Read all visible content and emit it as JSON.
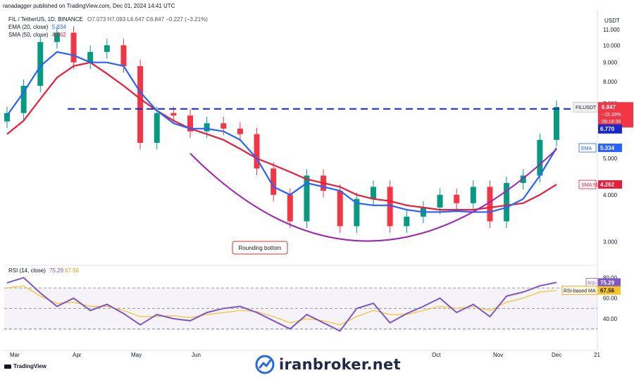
{
  "header": {
    "publisher": "ranadagger published on TradingView.com, Dec 01, 2024 14:41 UTC",
    "symbol": "FIL / TetherUS, 1D, BINANCE",
    "ohlc": "O7.073 H7.093 L6.647 C6.847 −0.227 (−3.21%)",
    "ema_label": "EMA (20, close)",
    "ema_value": "5.334",
    "sma_label": "SMA (50, close)",
    "sma_value": "4.262"
  },
  "currency": "USDT",
  "colors": {
    "up": "#089981",
    "down": "#f23645",
    "ema": "#2962ff",
    "sma": "#e91e3a",
    "curve": "#9c27b0",
    "resistance": "#1a27c9",
    "rsi": "#7e57c2",
    "rsi_ma": "#f7c325"
  },
  "chart_data": [
    {
      "type": "line",
      "price_scale": "log",
      "y_ticks": [
        "11.000",
        "10.000",
        "9.000",
        "8.000",
        "7.000",
        "5.000",
        "4.000",
        "3.000"
      ],
      "x_ticks": [
        "Mar",
        "Apr",
        "May",
        "Jun",
        "Oct",
        "Nov",
        "Dec",
        "21"
      ],
      "price_tags": [
        {
          "label": "FILUSDT",
          "value": "6.847",
          "change": "−15.39%",
          "countdown": "09:18:39",
          "color": "#f23645"
        },
        {
          "label": "",
          "value": "6.770",
          "color": "#1a27c9"
        },
        {
          "label": "EMA",
          "value": "5.334",
          "color": "#2962ff"
        },
        {
          "label": "SMA:MA",
          "value": "4.262",
          "color": "#e91e3a"
        }
      ],
      "resistance_level": 6.77,
      "annotation": "Rounding bottom",
      "series": [
        {
          "name": "EMA",
          "values": [
            6.5,
            7.5,
            8.8,
            9.6,
            9.4,
            9.0,
            9.0,
            8.8,
            7.5,
            6.7,
            6.2,
            6.0,
            6.0,
            5.9,
            5.6,
            5.0,
            4.2,
            4.0,
            4.3,
            4.2,
            4.1,
            3.8,
            3.75,
            3.75,
            3.65,
            3.6,
            3.6,
            3.62,
            3.6,
            3.6,
            3.7,
            3.9,
            4.5,
            5.33
          ]
        },
        {
          "name": "SMA",
          "values": [
            5.8,
            6.3,
            7.2,
            8.2,
            8.8,
            9.0,
            8.4,
            7.8,
            7.2,
            6.7,
            6.3,
            6.0,
            5.8,
            5.6,
            5.3,
            5.0,
            4.8,
            4.6,
            4.4,
            4.3,
            4.2,
            4.0,
            3.9,
            3.85,
            3.75,
            3.7,
            3.65,
            3.65,
            3.65,
            3.7,
            3.75,
            3.8,
            4.0,
            4.26
          ]
        }
      ],
      "closes": [
        6.6,
        7.8,
        10.2,
        10.8,
        9.0,
        9.6,
        10.0,
        8.8,
        5.5,
        6.6,
        6.5,
        5.9,
        6.2,
        6.0,
        5.8,
        4.7,
        4.0,
        3.4,
        4.5,
        4.1,
        3.3,
        3.9,
        4.2,
        3.3,
        3.5,
        3.7,
        4.0,
        3.8,
        4.2,
        3.4,
        4.3,
        4.5,
        5.6,
        6.85
      ]
    },
    {
      "type": "line",
      "title": "RSI (14, close)",
      "legend_values": [
        "75.29",
        "67.56"
      ],
      "y_ticks": [
        "80.00",
        "60.00",
        "40.00"
      ],
      "levels": [
        70,
        50,
        30
      ],
      "ylim": [
        20,
        90
      ],
      "series": [
        {
          "name": "RSI",
          "values": [
            75,
            80,
            65,
            52,
            60,
            48,
            54,
            45,
            34,
            44,
            40,
            38,
            46,
            50,
            52,
            46,
            38,
            30,
            44,
            36,
            28,
            50,
            55,
            36,
            45,
            52,
            60,
            46,
            54,
            42,
            62,
            66,
            72,
            75.29
          ]
        },
        {
          "name": "RSI-based MA",
          "values": [
            70,
            72,
            62,
            55,
            56,
            52,
            52,
            48,
            42,
            42,
            43,
            41,
            44,
            46,
            48,
            47,
            42,
            36,
            40,
            38,
            34,
            42,
            48,
            44,
            44,
            48,
            52,
            50,
            52,
            48,
            56,
            60,
            66,
            67.56
          ]
        }
      ],
      "tags": [
        {
          "label": "RSI",
          "value": "75.29"
        },
        {
          "label": "RSI-based MA",
          "value": "67.56"
        }
      ]
    }
  ],
  "watermark": "iranbroker.net",
  "footer_logo": "TradingView"
}
